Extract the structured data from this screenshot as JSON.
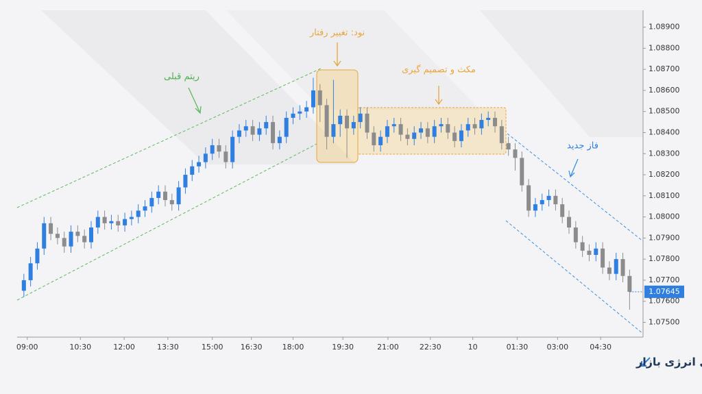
{
  "chart_data": {
    "type": "candlestick",
    "title": "Node در NDS: نقطه تغییر رفتار و آغاز جا به جایی انرژی بازار",
    "annotations": [
      "ریتم قبلی",
      "نود: تغییر رفتار",
      "مکث و تصمیم گیری",
      "فاز جدید"
    ],
    "up_color": "#2e7fe0",
    "down_color": "#8c8c8c",
    "open": [
      1.0765,
      1.077,
      1.0778,
      1.0785,
      1.0797,
      1.0792,
      1.079,
      1.0786,
      1.0793,
      1.0791,
      1.0788,
      1.0795,
      1.08,
      1.0797,
      1.0798,
      1.0796,
      1.0799,
      1.08,
      1.0803,
      1.0805,
      1.0809,
      1.0812,
      1.0808,
      1.0806,
      1.0814,
      1.082,
      1.0824,
      1.0826,
      1.083,
      1.0834,
      1.0831,
      1.0826,
      1.0838,
      1.0841,
      1.0843,
      1.0839,
      1.0842,
      1.0845,
      1.0835,
      1.0838,
      1.0847,
      1.0849,
      1.085,
      1.0852,
      1.086,
      1.0853,
      1.0838,
      1.0844,
      1.0848,
      1.0842,
      1.0845,
      1.0849,
      1.084,
      1.0834,
      1.0838,
      1.0843,
      1.0844,
      1.0839,
      1.0837,
      1.084,
      1.0842,
      1.0838,
      1.0843,
      1.0844,
      1.084,
      1.0836,
      1.0841,
      1.0844,
      1.0842,
      1.0846,
      1.0847,
      1.0843,
      1.0835,
      1.0832,
      1.0828,
      1.0815,
      1.0803,
      1.0806,
      1.0808,
      1.081,
      1.0806,
      1.08,
      1.0795,
      1.0788,
      1.0784,
      1.0782,
      1.0785,
      1.0776,
      1.0773,
      1.078,
      1.0772
    ],
    "high": [
      1.0773,
      1.0781,
      1.0788,
      1.08,
      1.08,
      1.0795,
      1.0793,
      1.0796,
      1.0796,
      1.0794,
      1.0798,
      1.0803,
      1.0803,
      1.0801,
      1.0801,
      1.0802,
      1.0803,
      1.0806,
      1.0808,
      1.0812,
      1.0815,
      1.0815,
      1.0811,
      1.0817,
      1.0823,
      1.0827,
      1.0829,
      1.0833,
      1.0837,
      1.0837,
      1.0834,
      1.0841,
      1.0844,
      1.0846,
      1.0846,
      1.0845,
      1.0848,
      1.0848,
      1.0841,
      1.085,
      1.0852,
      1.0853,
      1.0855,
      1.0866,
      1.0863,
      1.0856,
      1.0865,
      1.0851,
      1.0851,
      1.0848,
      1.0852,
      1.0852,
      1.0843,
      1.0841,
      1.0846,
      1.0847,
      1.0847,
      1.0842,
      1.0843,
      1.0845,
      1.0845,
      1.0846,
      1.0847,
      1.0847,
      1.0843,
      1.0844,
      1.0847,
      1.0847,
      1.0849,
      1.085,
      1.085,
      1.0846,
      1.0838,
      1.0835,
      1.0831,
      1.0818,
      1.0809,
      1.0811,
      1.0813,
      1.0813,
      1.0809,
      1.0803,
      1.0798,
      1.0791,
      1.0787,
      1.0788,
      1.0788,
      1.0779,
      1.0783,
      1.0783,
      1.0775
    ],
    "low": [
      1.0762,
      1.0767,
      1.0775,
      1.0782,
      1.0789,
      1.0787,
      1.0783,
      1.0783,
      1.0788,
      1.0785,
      1.0785,
      1.0792,
      1.0794,
      1.0794,
      1.0793,
      1.0793,
      1.0796,
      1.0797,
      1.08,
      1.0802,
      1.0806,
      1.0805,
      1.0803,
      1.0803,
      1.0811,
      1.0817,
      1.0821,
      1.0823,
      1.0827,
      1.0828,
      1.0823,
      1.0823,
      1.0835,
      1.0838,
      1.0836,
      1.0836,
      1.0839,
      1.0832,
      1.0832,
      1.0835,
      1.0844,
      1.0846,
      1.0847,
      1.0849,
      1.0845,
      1.0832,
      1.0835,
      1.0838,
      1.0828,
      1.0839,
      1.0842,
      1.0837,
      1.0831,
      1.0831,
      1.0835,
      1.084,
      1.0836,
      1.0834,
      1.0834,
      1.0837,
      1.0835,
      1.0835,
      1.084,
      1.0837,
      1.0833,
      1.0833,
      1.0838,
      1.0839,
      1.0839,
      1.0843,
      1.084,
      1.0832,
      1.0829,
      1.0822,
      1.0812,
      1.08,
      1.08,
      1.0803,
      1.0805,
      1.0803,
      1.0797,
      1.0792,
      1.0785,
      1.0781,
      1.0779,
      1.0779,
      1.0773,
      1.077,
      1.077,
      1.0769,
      1.0756
    ],
    "close": [
      1.077,
      1.0778,
      1.0785,
      1.0797,
      1.0792,
      1.079,
      1.0786,
      1.0793,
      1.0791,
      1.0788,
      1.0795,
      1.08,
      1.0797,
      1.0798,
      1.0796,
      1.0799,
      1.08,
      1.0803,
      1.0805,
      1.0809,
      1.0812,
      1.0808,
      1.0806,
      1.0814,
      1.082,
      1.0824,
      1.0826,
      1.083,
      1.0834,
      1.0831,
      1.0826,
      1.0838,
      1.0841,
      1.0843,
      1.0839,
      1.0842,
      1.0845,
      1.0835,
      1.0838,
      1.0847,
      1.0849,
      1.085,
      1.0852,
      1.086,
      1.0853,
      1.0838,
      1.0844,
      1.0848,
      1.0842,
      1.0845,
      1.0849,
      1.084,
      1.0834,
      1.0838,
      1.0843,
      1.0844,
      1.0839,
      1.0837,
      1.084,
      1.0842,
      1.0838,
      1.0843,
      1.0844,
      1.084,
      1.0836,
      1.0841,
      1.0844,
      1.0842,
      1.0846,
      1.0847,
      1.0843,
      1.0835,
      1.0832,
      1.0828,
      1.0815,
      1.0803,
      1.0806,
      1.0808,
      1.081,
      1.0806,
      1.08,
      1.0795,
      1.0788,
      1.0784,
      1.0782,
      1.0785,
      1.0776,
      1.0773,
      1.078,
      1.0772,
      1.07645
    ],
    "last_price": 1.07645,
    "xlim": [
      -1,
      92
    ],
    "xticks": [
      {
        "value": 0.5,
        "label": "09:00"
      },
      {
        "value": 8.4,
        "label": "10:30"
      },
      {
        "value": 14.9,
        "label": "12:00"
      },
      {
        "value": 21.4,
        "label": "13:30"
      },
      {
        "value": 28,
        "label": "15:00"
      },
      {
        "value": 33.8,
        "label": "16:30"
      },
      {
        "value": 40,
        "label": "18:00"
      },
      {
        "value": 47.4,
        "label": "19:30"
      },
      {
        "value": 54.1,
        "label": "21:00"
      },
      {
        "value": 60.4,
        "label": "22:30"
      },
      {
        "value": 66.7,
        "label": "10"
      },
      {
        "value": 73.3,
        "label": "01:30"
      },
      {
        "value": 79.3,
        "label": "03:00"
      },
      {
        "value": 85.7,
        "label": "04:30"
      }
    ],
    "ylim": [
      1.0743,
      1.0898
    ],
    "yticks": [
      {
        "value": 1.075,
        "label": "1.07500"
      },
      {
        "value": 1.076,
        "label": "1.07600"
      },
      {
        "value": 1.077,
        "label": "1.07700"
      },
      {
        "value": 1.078,
        "label": "1.07800"
      },
      {
        "value": 1.079,
        "label": "1.07900"
      },
      {
        "value": 1.08,
        "label": "1.08000"
      },
      {
        "value": 1.081,
        "label": "1.08100"
      },
      {
        "value": 1.082,
        "label": "1.08200"
      },
      {
        "value": 1.083,
        "label": "1.08300"
      },
      {
        "value": 1.084,
        "label": "1.08400"
      },
      {
        "value": 1.085,
        "label": "1.08500"
      },
      {
        "value": 1.086,
        "label": "1.08600"
      },
      {
        "value": 1.087,
        "label": "1.08700"
      },
      {
        "value": 1.088,
        "label": "1.08800"
      },
      {
        "value": 1.089,
        "label": "1.08900"
      }
    ],
    "grid": false
  }
}
